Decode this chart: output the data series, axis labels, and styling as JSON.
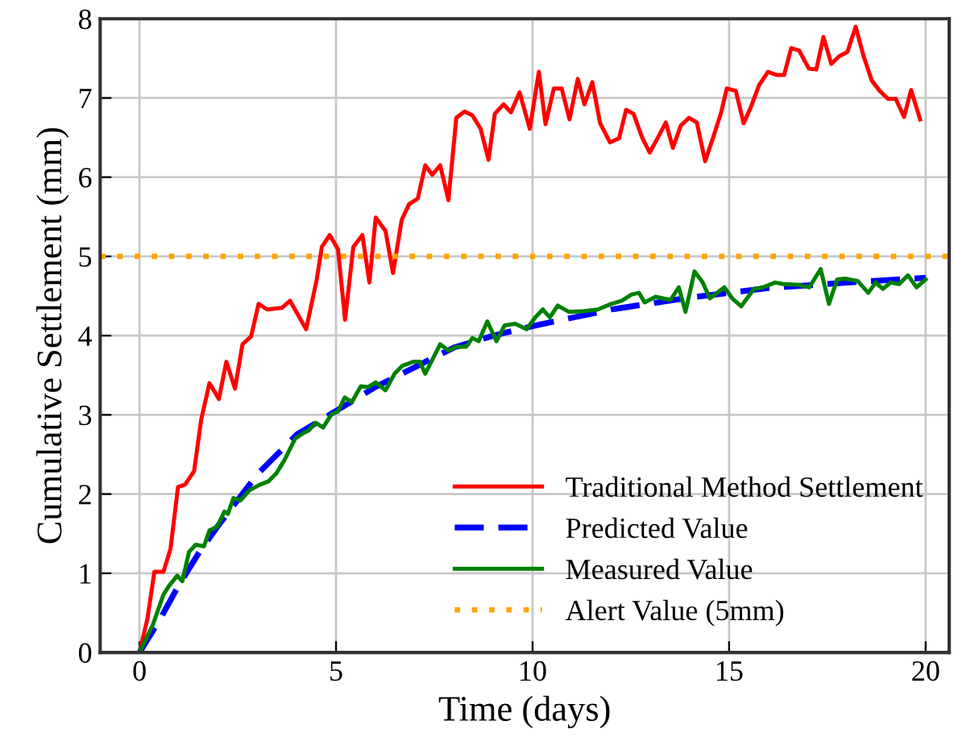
{
  "chart_data": {
    "type": "line",
    "xlabel": "Time (days)",
    "ylabel": "Cumulative Settlement (mm)",
    "xlim": [
      -1,
      20.6
    ],
    "ylim": [
      0,
      8
    ],
    "xticks": [
      0,
      5,
      10,
      15,
      20
    ],
    "yticks": [
      0,
      1,
      2,
      3,
      4,
      5,
      6,
      7,
      8
    ],
    "grid": true,
    "legend": "bottom right",
    "marker": "none",
    "series": [
      {
        "name": "Traditional Method Settlement",
        "color": "#ff0000",
        "line_style": "solid",
        "x": [
          0,
          0.2,
          0.38,
          0.61,
          0.79,
          0.98,
          1.16,
          1.39,
          1.57,
          1.78,
          2.02,
          2.21,
          2.43,
          2.62,
          2.84,
          3.03,
          3.25,
          3.62,
          3.83,
          4.24,
          4.51,
          4.64,
          4.84,
          5.05,
          5.23,
          5.44,
          5.67,
          5.85,
          6.01,
          6.26,
          6.45,
          6.67,
          6.86,
          7.08,
          7.27,
          7.45,
          7.65,
          7.86,
          8.06,
          8.27,
          8.47,
          8.68,
          8.88,
          9.04,
          9.26,
          9.45,
          9.67,
          9.93,
          10.16,
          10.33,
          10.54,
          10.74,
          10.94,
          11.15,
          11.32,
          11.52,
          11.72,
          11.97,
          12.2,
          12.38,
          12.57,
          12.78,
          12.98,
          13.2,
          13.39,
          13.57,
          13.77,
          13.98,
          14.18,
          14.39,
          14.6,
          14.8,
          14.94,
          15.17,
          15.37,
          15.55,
          15.76,
          15.99,
          16.21,
          16.4,
          16.58,
          16.78,
          17.03,
          17.22,
          17.4,
          17.6,
          17.81,
          18.01,
          18.22,
          18.42,
          18.63,
          18.83,
          19.04,
          19.24,
          19.45,
          19.63,
          19.86
        ],
        "values": [
          0,
          0.42,
          1.02,
          1.02,
          1.31,
          2.09,
          2.12,
          2.29,
          2.94,
          3.4,
          3.2,
          3.67,
          3.33,
          3.89,
          3.99,
          4.4,
          4.33,
          4.35,
          4.44,
          4.08,
          4.71,
          5.12,
          5.27,
          5.09,
          4.2,
          5.12,
          5.27,
          4.67,
          5.49,
          5.32,
          4.79,
          5.46,
          5.66,
          5.73,
          6.15,
          6.03,
          6.15,
          5.71,
          6.75,
          6.83,
          6.78,
          6.61,
          6.22,
          6.8,
          6.92,
          6.82,
          7.07,
          6.61,
          7.33,
          6.67,
          7.12,
          7.12,
          6.73,
          7.24,
          6.92,
          7.2,
          6.68,
          6.44,
          6.49,
          6.85,
          6.8,
          6.51,
          6.31,
          6.51,
          6.69,
          6.37,
          6.65,
          6.75,
          6.69,
          6.2,
          6.51,
          6.82,
          7.12,
          7.09,
          6.68,
          6.88,
          7.16,
          7.33,
          7.29,
          7.29,
          7.63,
          7.6,
          7.37,
          7.36,
          7.77,
          7.43,
          7.53,
          7.58,
          7.9,
          7.53,
          7.22,
          7.09,
          6.99,
          6.99,
          6.76,
          7.1,
          6.73
        ]
      },
      {
        "name": "Predicted Value",
        "color": "#0000ff",
        "line_style": "dashed",
        "x": [
          0,
          0.5,
          1,
          1.5,
          2,
          3,
          4,
          5,
          6,
          7,
          8,
          9,
          10,
          12,
          14,
          16,
          18,
          20
        ],
        "values": [
          0,
          0.4,
          0.85,
          1.25,
          1.6,
          2.25,
          2.75,
          3.05,
          3.35,
          3.6,
          3.85,
          4.0,
          4.12,
          4.33,
          4.48,
          4.6,
          4.67,
          4.73
        ]
      },
      {
        "name": "Measured Value",
        "color": "#008000",
        "line_style": "solid",
        "x": [
          0,
          0.34,
          0.61,
          0.75,
          0.96,
          1.09,
          1.26,
          1.43,
          1.64,
          1.78,
          1.98,
          2.16,
          2.25,
          2.39,
          2.57,
          2.8,
          3.07,
          3.28,
          3.48,
          3.69,
          3.96,
          4.17,
          4.3,
          4.48,
          4.67,
          4.89,
          5.05,
          5.22,
          5.4,
          5.63,
          5.81,
          6.01,
          6.26,
          6.49,
          6.69,
          6.97,
          7.13,
          7.27,
          7.65,
          7.86,
          8.06,
          8.31,
          8.47,
          8.63,
          8.85,
          9.08,
          9.29,
          9.56,
          9.85,
          10.07,
          10.26,
          10.44,
          10.64,
          10.92,
          11.32,
          11.66,
          12.0,
          12.27,
          12.52,
          12.71,
          12.85,
          13.13,
          13.51,
          13.72,
          13.89,
          14.12,
          14.33,
          14.51,
          14.88,
          15.08,
          15.31,
          15.63,
          15.86,
          16.17,
          16.38,
          16.79,
          17.04,
          17.33,
          17.54,
          17.75,
          17.96,
          18.27,
          18.54,
          18.73,
          18.91,
          19.11,
          19.32,
          19.55,
          19.77,
          20.0
        ],
        "values": [
          0,
          0.35,
          0.73,
          0.84,
          0.97,
          0.9,
          1.27,
          1.36,
          1.34,
          1.54,
          1.59,
          1.78,
          1.75,
          1.95,
          1.92,
          2.05,
          2.12,
          2.16,
          2.26,
          2.43,
          2.7,
          2.77,
          2.8,
          2.9,
          2.84,
          3.01,
          3.04,
          3.22,
          3.16,
          3.36,
          3.35,
          3.41,
          3.31,
          3.52,
          3.62,
          3.67,
          3.67,
          3.52,
          3.89,
          3.81,
          3.86,
          3.86,
          3.97,
          3.93,
          4.18,
          3.93,
          4.13,
          4.15,
          4.08,
          4.23,
          4.33,
          4.23,
          4.38,
          4.3,
          4.31,
          4.33,
          4.4,
          4.44,
          4.52,
          4.54,
          4.42,
          4.49,
          4.45,
          4.61,
          4.3,
          4.81,
          4.67,
          4.47,
          4.61,
          4.47,
          4.37,
          4.59,
          4.61,
          4.67,
          4.65,
          4.64,
          4.61,
          4.84,
          4.4,
          4.71,
          4.72,
          4.69,
          4.54,
          4.67,
          4.59,
          4.67,
          4.65,
          4.76,
          4.61,
          4.71
        ]
      }
    ],
    "ref_lines": [
      {
        "axis": "y",
        "value": 5,
        "label": "Alert Value (5mm)",
        "color": "#ffa500",
        "line_style": "dotted"
      }
    ]
  }
}
